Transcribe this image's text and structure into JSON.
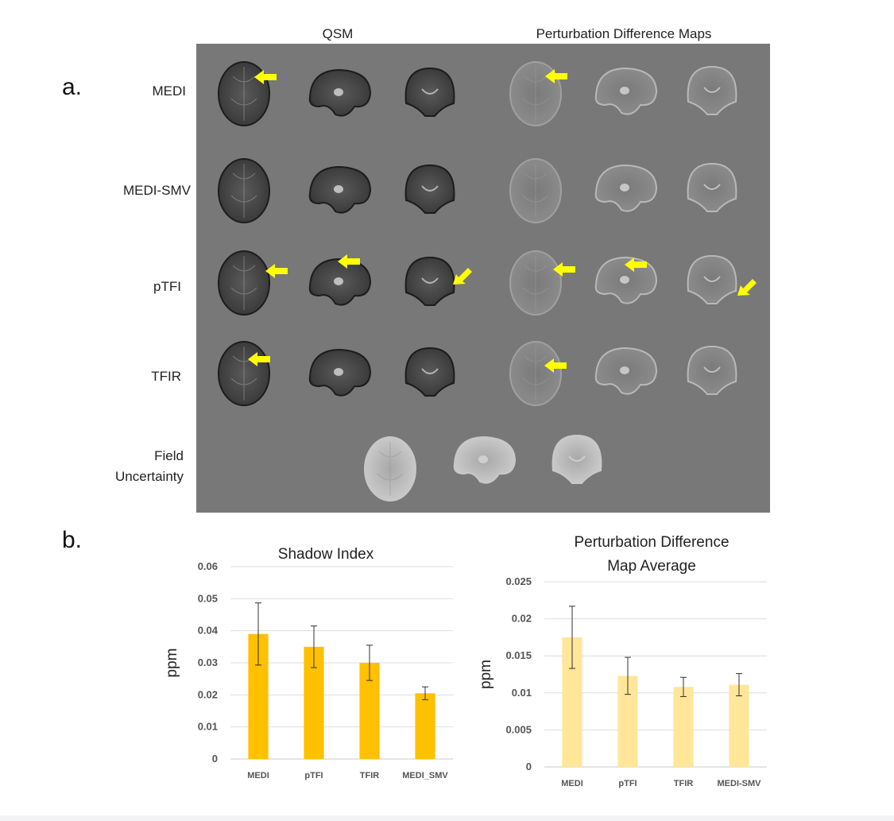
{
  "panel_a": {
    "letter": "a.",
    "headers": {
      "qsm": "QSM",
      "perturbation": "Perturbation Difference Maps"
    },
    "rows": [
      {
        "label": "MEDI"
      },
      {
        "label": "MEDI-SMV"
      },
      {
        "label": "pTFI"
      },
      {
        "label": "TFIR"
      },
      {
        "label": "Field\nUncertainty"
      }
    ],
    "arrow_color": "#ffff00"
  },
  "panel_b": {
    "letter": "b."
  },
  "chart_data": [
    {
      "type": "bar",
      "title": "Shadow Index",
      "ylabel": "ppm",
      "xlabel": "",
      "categories": [
        "MEDI",
        "pTFI",
        "TFIR",
        "MEDI_SMV"
      ],
      "values": [
        0.039,
        0.035,
        0.03,
        0.0205
      ],
      "error": [
        0.0097,
        0.0065,
        0.0055,
        0.002
      ],
      "ylim": [
        0,
        0.06
      ],
      "yticks": [
        "0",
        "0.01",
        "0.02",
        "0.03",
        "0.04",
        "0.05",
        "0.06"
      ],
      "ytick_values": [
        0,
        0.01,
        0.02,
        0.03,
        0.04,
        0.05,
        0.06
      ],
      "grid": true,
      "color": "#ffc000"
    },
    {
      "type": "bar",
      "title": "Perturbation Difference\nMap Average",
      "ylabel": "ppm",
      "xlabel": "",
      "categories": [
        "MEDI",
        "pTFI",
        "TFIR",
        "MEDI-SMV"
      ],
      "values": [
        0.0175,
        0.0123,
        0.0108,
        0.0111
      ],
      "error": [
        0.0042,
        0.0025,
        0.0013,
        0.0015
      ],
      "ylim": [
        0,
        0.025
      ],
      "yticks": [
        "0",
        "0.005",
        "0.01",
        "0.015",
        "0.02",
        "0.025"
      ],
      "ytick_values": [
        0,
        0.005,
        0.01,
        0.015,
        0.02,
        0.025
      ],
      "grid": true,
      "color": "#ffe699"
    }
  ]
}
